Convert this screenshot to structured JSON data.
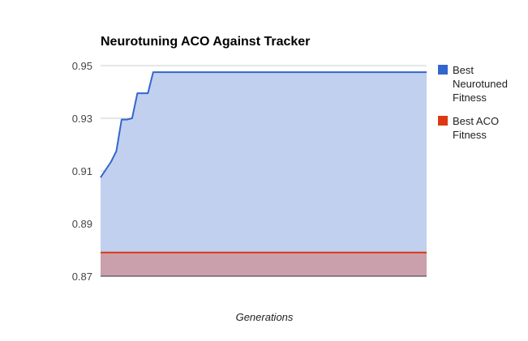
{
  "chart_data": {
    "type": "area",
    "title": "Neurotuning ACO Against Tracker",
    "xlabel": "Generations",
    "ylabel": "",
    "ylim": [
      0.87,
      0.95
    ],
    "yticks": [
      "0.95",
      "0.93",
      "0.91",
      "0.89",
      "0.87"
    ],
    "ytick_values": [
      0.95,
      0.93,
      0.91,
      0.89,
      0.87
    ],
    "grid": true,
    "legend_position": "right",
    "x": [
      0,
      1,
      2,
      3,
      4,
      5,
      6,
      7,
      8,
      9,
      10,
      11,
      12,
      13,
      14,
      15,
      16,
      17,
      18,
      19,
      20,
      21,
      22,
      23,
      24,
      25,
      26,
      27,
      28,
      29,
      30,
      31,
      32,
      33,
      34,
      35,
      36,
      37,
      38,
      39,
      40,
      41,
      42,
      43,
      44,
      45,
      46,
      47,
      48,
      49,
      50,
      51,
      52,
      53,
      54,
      55,
      56,
      57,
      58,
      59,
      60,
      61,
      62
    ],
    "series": [
      {
        "name": "Best Neurotuned Fitness",
        "color": "#3366cc",
        "fill": "#c2d0f0",
        "values": [
          0.9075,
          0.9105,
          0.9135,
          0.9175,
          0.9295,
          0.9295,
          0.93,
          0.9395,
          0.9395,
          0.9395,
          0.9475,
          0.9475,
          0.9475,
          0.9475,
          0.9475,
          0.9475,
          0.9475,
          0.9475,
          0.9475,
          0.9475,
          0.9475,
          0.9475,
          0.9475,
          0.9475,
          0.9475,
          0.9475,
          0.9475,
          0.9475,
          0.9475,
          0.9475,
          0.9475,
          0.9475,
          0.9475,
          0.9475,
          0.9475,
          0.9475,
          0.9475,
          0.9475,
          0.9475,
          0.9475,
          0.9475,
          0.9475,
          0.9475,
          0.9475,
          0.9475,
          0.9475,
          0.9475,
          0.9475,
          0.9475,
          0.9475,
          0.9475,
          0.9475,
          0.9475,
          0.9475,
          0.9475,
          0.9475,
          0.9475,
          0.9475,
          0.9475,
          0.9475,
          0.9475,
          0.9475,
          0.9475
        ]
      },
      {
        "name": "Best ACO Fitness",
        "color": "#dc3912",
        "fill": "#c9a0ab",
        "values": [
          0.879,
          0.879,
          0.879,
          0.879,
          0.879,
          0.879,
          0.879,
          0.879,
          0.879,
          0.879,
          0.879,
          0.879,
          0.879,
          0.879,
          0.879,
          0.879,
          0.879,
          0.879,
          0.879,
          0.879,
          0.879,
          0.879,
          0.879,
          0.879,
          0.879,
          0.879,
          0.879,
          0.879,
          0.879,
          0.879,
          0.879,
          0.879,
          0.879,
          0.879,
          0.879,
          0.879,
          0.879,
          0.879,
          0.879,
          0.879,
          0.879,
          0.879,
          0.879,
          0.879,
          0.879,
          0.879,
          0.879,
          0.879,
          0.879,
          0.879,
          0.879,
          0.879,
          0.879,
          0.879,
          0.879,
          0.879,
          0.879,
          0.879,
          0.879,
          0.879,
          0.879,
          0.879,
          0.879
        ]
      }
    ],
    "legend": [
      {
        "lines": [
          "Best",
          "Neurotuned",
          "Fitness"
        ],
        "color": "#3366cc"
      },
      {
        "lines": [
          "Best ACO",
          "Fitness"
        ],
        "color": "#dc3912"
      }
    ]
  }
}
